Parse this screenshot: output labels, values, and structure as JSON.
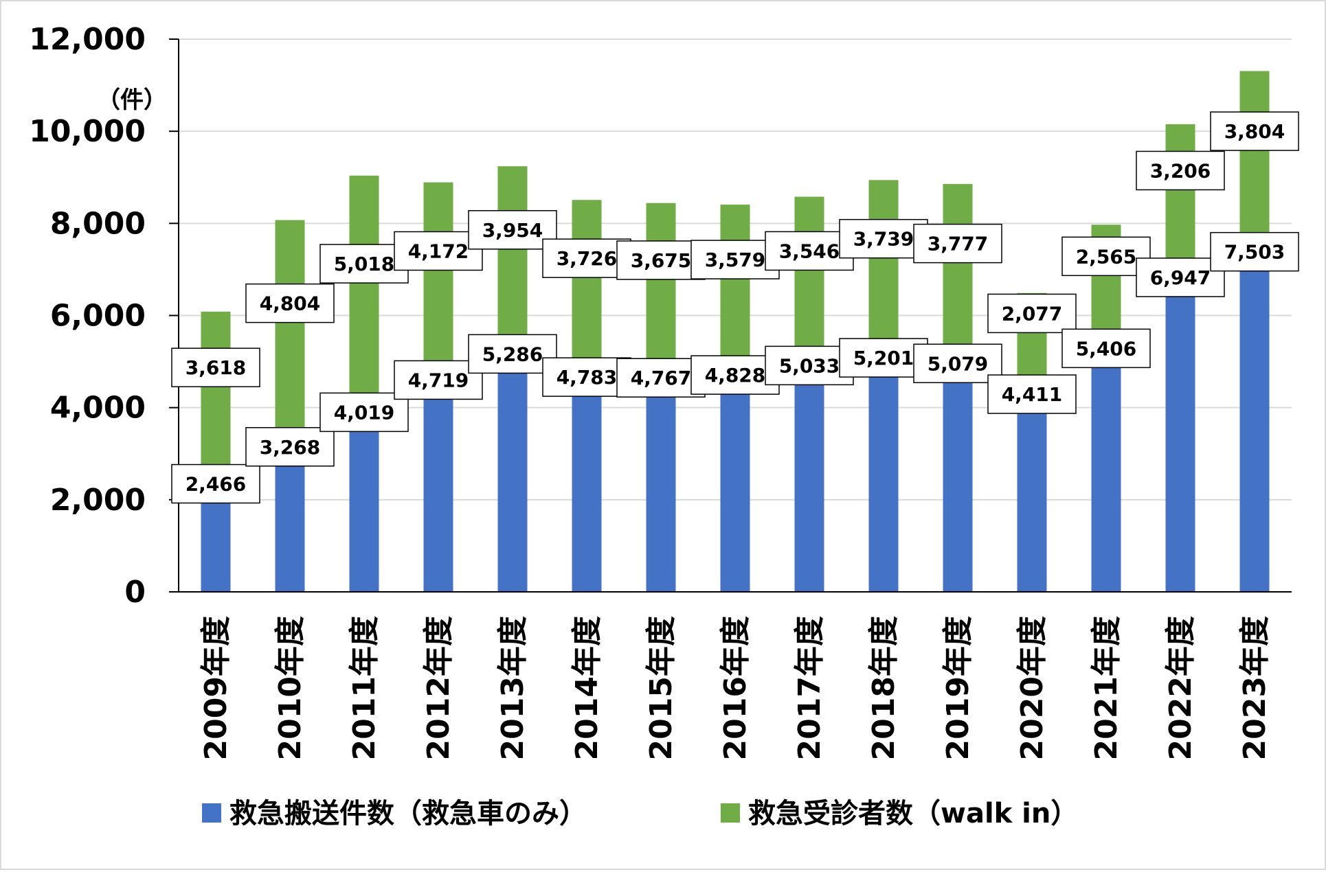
{
  "chart_data": {
    "type": "bar",
    "stacked": true,
    "categories": [
      "2009年度",
      "2010年度",
      "2011年度",
      "2012年度",
      "2013年度",
      "2014年度",
      "2015年度",
      "2016年度",
      "2017年度",
      "2018年度",
      "2019年度",
      "2020年度",
      "2021年度",
      "2022年度",
      "2023年度"
    ],
    "series": [
      {
        "name": "救急搬送件数（救急車のみ）",
        "color": "#4472c4",
        "values": [
          2466,
          3268,
          4019,
          4719,
          5286,
          4783,
          4767,
          4828,
          5033,
          5201,
          5079,
          4411,
          5406,
          6947,
          7503
        ],
        "labels": [
          "2,466",
          "3,268",
          "4,019",
          "4,719",
          "5,286",
          "4,783",
          "4,767",
          "4,828",
          "5,033",
          "5,201",
          "5,079",
          "4,411",
          "5,406",
          "6,947",
          "7,503"
        ]
      },
      {
        "name": "救急受診者数（walk in）",
        "color": "#70ad47",
        "values": [
          3618,
          4804,
          5018,
          4172,
          3954,
          3726,
          3675,
          3579,
          3546,
          3739,
          3777,
          2077,
          2565,
          3206,
          3804
        ],
        "labels": [
          "3,618",
          "4,804",
          "5,018",
          "4,172",
          "3,954",
          "3,726",
          "3,675",
          "3,579",
          "3,546",
          "3,739",
          "3,777",
          "2,077",
          "2,565",
          "3,206",
          "3,804"
        ]
      }
    ],
    "yticks": [
      "0",
      "2,000",
      "4,000",
      "6,000",
      "8,000",
      "10,000",
      "12,000"
    ],
    "ylim": [
      0,
      12000
    ],
    "ylabel": "（件）",
    "grid": true,
    "legend_position": "bottom"
  }
}
